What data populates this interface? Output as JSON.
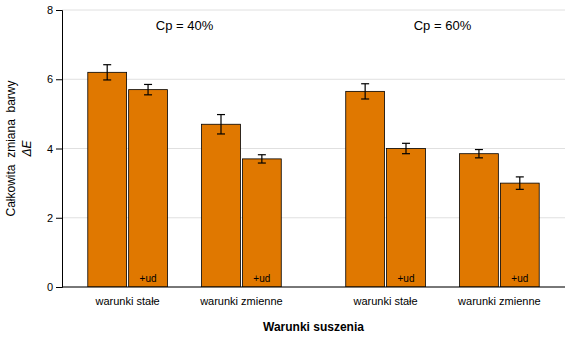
{
  "chart_data": {
    "type": "bar",
    "xlabel": "Warunki suszenia",
    "ylabel": [
      "Całkowita  zmiana  barwy",
      "ΔE"
    ],
    "categories": [
      null,
      null,
      null,
      null,
      null,
      null,
      null,
      null
    ],
    "values": [
      6.2,
      5.7,
      4.7,
      3.7,
      5.65,
      4.0,
      3.85,
      3.0
    ],
    "errors": [
      0.22,
      0.15,
      0.28,
      0.12,
      0.22,
      0.15,
      0.12,
      0.18
    ],
    "annotations": [
      null,
      "+ud",
      null,
      "+ud",
      null,
      "+ud",
      null,
      "+ud"
    ],
    "group_labels": [
      {
        "text": "warunki stałe",
        "bar_indices": [
          0,
          1
        ]
      },
      {
        "text": "warunki zmienne",
        "bar_indices": [
          2,
          3
        ]
      },
      {
        "text": "warunki stałe",
        "bar_indices": [
          4,
          5
        ]
      },
      {
        "text": "warunki zmienne",
        "bar_indices": [
          6,
          7
        ]
      }
    ],
    "cp_labels": [
      {
        "text": "Cp = 40%",
        "bar_indices": [
          0,
          1,
          2,
          3
        ]
      },
      {
        "text": "Cp = 60%",
        "bar_indices": [
          4,
          5,
          6,
          7
        ]
      }
    ],
    "color": "#E07800",
    "ylim": [
      0,
      8
    ],
    "yticks": [
      0,
      2,
      4,
      6,
      8
    ],
    "grid": true,
    "tick_labels": "y"
  }
}
